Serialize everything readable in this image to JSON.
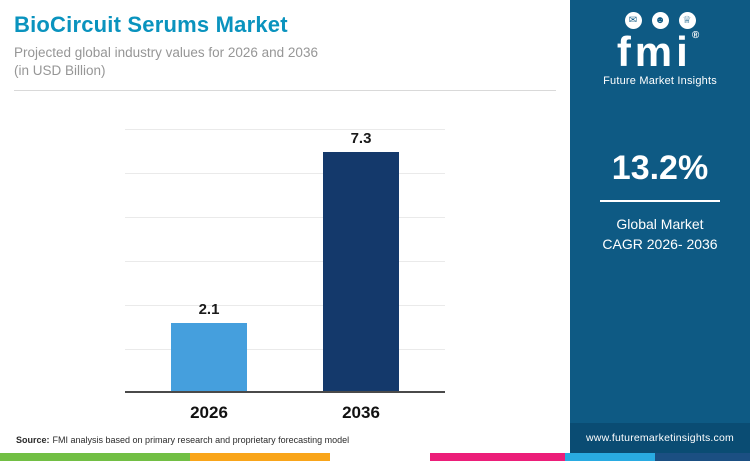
{
  "header": {
    "title": "BioCircuit Serums Market",
    "subtitle_line1": "Projected global industry values for 2026 and 2036",
    "subtitle_line2": "(in USD Billion)"
  },
  "chart_data": {
    "type": "bar",
    "categories": [
      "2026",
      "2036"
    ],
    "values": [
      2.1,
      7.3
    ],
    "value_labels": [
      "2.1",
      "7.3"
    ],
    "bar_colors": [
      "#459fdd",
      "#14396b"
    ],
    "title": "BioCircuit Serums Market",
    "xlabel": "",
    "ylabel": "USD Billion",
    "ylim": [
      0,
      8
    ],
    "grid": true,
    "legend": false
  },
  "sidebar": {
    "logo": {
      "icons": [
        "mail-icon",
        "person-icon",
        "trophy-icon"
      ],
      "icon_glyphs": [
        "✉",
        "☻",
        "♕"
      ],
      "text": "fmi",
      "registered": "®",
      "tagline": "Future Market Insights"
    },
    "cagr_value": "13.2%",
    "cagr_label_line1": "Global Market",
    "cagr_label_line2": "CAGR 2026- 2036",
    "website": "www.futuremarketinsights.com",
    "background_color": "#0e5a84",
    "website_bar_color": "#0a4c73"
  },
  "footer": {
    "source_prefix": "Source:",
    "source_text": "FMI analysis based on primary research and proprietary forecasting model",
    "stripe_colors": [
      "#72bf44",
      "#f9a51a",
      "#ffffff",
      "#ec1e79",
      "#29abe2",
      "#1b4f82"
    ],
    "stripe_widths": [
      25.3,
      18.7,
      13.3,
      18.0,
      12.0,
      12.7
    ]
  },
  "colors": {
    "title_accent": "#0a93be",
    "gridline": "#eaeaea",
    "axis_line": "#4a4a4a"
  }
}
